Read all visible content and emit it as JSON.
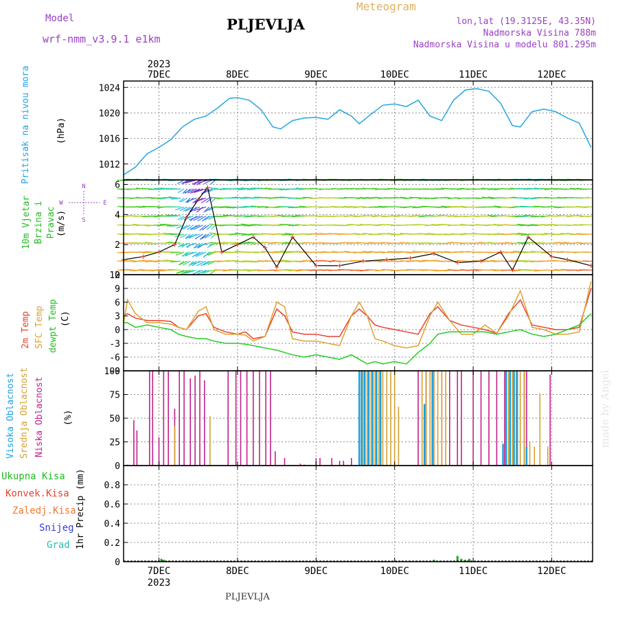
{
  "header": {
    "model_label": "Model",
    "model_name": "wrf-nmm_v3.9.1  e1km",
    "station": "PLJEVLJA",
    "product": "Meteogram",
    "coords": "lon,lat (19.3125E, 43.35N)",
    "elevation": "Nadmorska Visina 788m",
    "model_elevation": "Nadmorska Visina u modelu 801.295m"
  },
  "footer": {
    "station": "PLJEVLJA",
    "credit": "made by Angel"
  },
  "time_axis": {
    "year": "2023",
    "days": [
      "7DEC",
      "8DEC",
      "9DEC",
      "10DEC",
      "11DEC",
      "12DEC"
    ]
  },
  "colors": {
    "pressure": "#22a6e0",
    "t2m": "#e8402e",
    "sfc": "#e0a030",
    "dewpt": "#22cc22",
    "cloud_high": "#1aa0e0",
    "cloud_mid": "#d4a030",
    "cloud_low": "#c0208a",
    "precip": "#22aa22",
    "axis": "#000000",
    "grid": "#888888"
  },
  "chart_data": [
    {
      "type": "line",
      "ylabel": "Pritisak na nivou mora",
      "unit": "(hPa)",
      "ylim": [
        1009.5,
        1025
      ],
      "yticks": [
        1012,
        1016,
        1020,
        1024
      ],
      "x_days": [
        6.55,
        6.7,
        6.85,
        7.0,
        7.15,
        7.3,
        7.45,
        7.6,
        7.75,
        7.9,
        8.0,
        8.15,
        8.3,
        8.45,
        8.55,
        8.7,
        8.85,
        9.0,
        9.15,
        9.3,
        9.45,
        9.55,
        9.7,
        9.85,
        10.0,
        10.15,
        10.3,
        10.45,
        10.6,
        10.75,
        10.9,
        11.05,
        11.2,
        11.35,
        11.5,
        11.6,
        11.75,
        11.9,
        12.05,
        12.2,
        12.35,
        12.5
      ],
      "series": [
        {
          "values": [
            1010.3,
            1011.5,
            1013.6,
            1014.6,
            1015.8,
            1017.8,
            1019.0,
            1019.5,
            1020.8,
            1022.3,
            1022.4,
            1022.0,
            1020.5,
            1017.8,
            1017.5,
            1018.8,
            1019.2,
            1019.3,
            1019.0,
            1020.5,
            1019.5,
            1018.3,
            1019.8,
            1021.2,
            1021.4,
            1021.0,
            1022.0,
            1019.5,
            1018.8,
            1022.0,
            1023.6,
            1023.8,
            1023.4,
            1021.5,
            1018.0,
            1017.8,
            1020.2,
            1020.6,
            1020.2,
            1019.2,
            1018.4,
            1014.6
          ]
        }
      ]
    },
    {
      "type": "scatter",
      "ylabel": "10m Vjetar Brzina i Pravac",
      "unit": "(m/s)",
      "compass": {
        "north": "N",
        "south": "S",
        "east": "E",
        "west": "W"
      },
      "ylim": [
        0,
        6.3
      ],
      "yticks": [
        0,
        2,
        4,
        6
      ],
      "x_days": [
        6.55,
        6.8,
        7.0,
        7.2,
        7.35,
        7.5,
        7.62,
        7.8,
        8.0,
        8.2,
        8.35,
        8.5,
        8.7,
        9.0,
        9.3,
        9.6,
        9.9,
        10.2,
        10.5,
        10.8,
        11.1,
        11.35,
        11.5,
        11.7,
        12.0,
        12.2,
        12.5
      ],
      "series": [
        {
          "name": "speed",
          "values": [
            1.0,
            1.2,
            1.5,
            2.0,
            3.8,
            5.0,
            5.8,
            1.5,
            2.0,
            2.5,
            1.8,
            0.5,
            2.5,
            0.6,
            0.6,
            0.9,
            1.0,
            1.1,
            1.4,
            0.8,
            0.9,
            1.5,
            0.3,
            2.5,
            1.2,
            1.0,
            0.6
          ]
        }
      ]
    },
    {
      "type": "line",
      "ylabels": [
        "2m Temp",
        "SFC Temp",
        "dewpt Temp"
      ],
      "unit": "(C)",
      "ylim": [
        -9,
        12
      ],
      "yticks": [
        -9,
        -6,
        -3,
        0,
        3,
        6,
        9,
        12
      ],
      "x_days": [
        6.55,
        6.6,
        6.7,
        6.85,
        7.0,
        7.15,
        7.25,
        7.35,
        7.5,
        7.6,
        7.7,
        7.85,
        8.0,
        8.1,
        8.2,
        8.35,
        8.5,
        8.6,
        8.7,
        8.85,
        9.0,
        9.15,
        9.3,
        9.45,
        9.55,
        9.65,
        9.75,
        9.85,
        10.0,
        10.15,
        10.3,
        10.45,
        10.55,
        10.7,
        10.85,
        11.0,
        11.15,
        11.3,
        11.45,
        11.6,
        11.75,
        11.9,
        12.05,
        12.2,
        12.35,
        12.5
      ],
      "series": [
        {
          "name": "2m",
          "values": [
            3.0,
            3.5,
            2.5,
            2.0,
            2.0,
            1.8,
            0.5,
            0.0,
            3.0,
            3.5,
            0.5,
            -0.5,
            -1.0,
            -0.5,
            -2.0,
            -1.5,
            4.5,
            3.0,
            -0.5,
            -1.0,
            -1.0,
            -1.5,
            -1.5,
            3.0,
            4.5,
            3.0,
            1.0,
            0.5,
            0.0,
            -0.5,
            -1.0,
            3.5,
            5.0,
            2.0,
            1.0,
            0.5,
            0.0,
            -0.8,
            3.5,
            6.5,
            1.0,
            0.5,
            0.0,
            0.0,
            0.5,
            9.0
          ]
        },
        {
          "name": "SFC",
          "values": [
            1.5,
            6.5,
            3.5,
            1.5,
            1.5,
            1.2,
            0.5,
            0.0,
            4.0,
            5.0,
            0.0,
            -1.0,
            -1.0,
            -1.2,
            -2.5,
            -1.5,
            6.0,
            5.0,
            -2.0,
            -2.5,
            -2.5,
            -3.0,
            -3.5,
            3.0,
            6.0,
            3.0,
            -2.0,
            -2.5,
            -3.5,
            -4.0,
            -3.5,
            3.0,
            6.0,
            2.0,
            -1.0,
            -1.0,
            1.0,
            -0.8,
            3.0,
            8.5,
            0.5,
            0.0,
            -1.0,
            -1.0,
            -0.5,
            10.5
          ]
        },
        {
          "name": "dewpt",
          "values": [
            1.5,
            1.5,
            0.5,
            1.0,
            0.5,
            0.0,
            -1.0,
            -1.5,
            -2.0,
            -2.0,
            -2.5,
            -3.0,
            -3.0,
            -3.2,
            -3.5,
            -4.0,
            -4.5,
            -5.0,
            -5.5,
            -6.0,
            -5.5,
            -6.0,
            -6.5,
            -5.5,
            -6.5,
            -7.5,
            -7.0,
            -7.5,
            -7.0,
            -7.5,
            -5.0,
            -3.0,
            -1.0,
            -0.5,
            -0.5,
            -0.5,
            -0.5,
            -1.0,
            -0.5,
            0.0,
            -1.0,
            -1.5,
            -1.0,
            0.0,
            1.0,
            3.5
          ]
        }
      ]
    },
    {
      "type": "bar",
      "ylabels": [
        "Visoka Oblacnost",
        "Srednja Oblacnost",
        "Niska Oblacnost"
      ],
      "unit": "(%)",
      "ylim": [
        0,
        100
      ],
      "yticks": [
        0,
        25,
        50,
        75,
        100
      ],
      "series": [
        {
          "name": "low",
          "x_days": [
            6.6,
            6.68,
            6.72,
            6.88,
            6.92,
            7.0,
            7.06,
            7.12,
            7.2,
            7.26,
            7.32,
            7.4,
            7.46,
            7.52,
            7.58,
            7.88,
            7.98,
            8.04,
            8.12,
            8.2,
            8.28,
            8.36,
            8.42,
            8.48,
            8.6,
            8.8,
            8.85,
            9.0,
            9.05,
            9.2,
            9.3,
            9.35,
            9.45,
            10.3,
            10.4,
            10.5,
            10.6,
            10.7,
            10.8,
            10.85,
            11.0,
            11.1,
            11.2,
            11.3,
            11.4,
            11.42,
            11.5,
            11.55,
            11.6,
            11.65,
            11.68,
            11.98
          ],
          "values": [
            1,
            48,
            37,
            100,
            100,
            30,
            100,
            100,
            60,
            100,
            100,
            92,
            95,
            100,
            90,
            100,
            100,
            100,
            100,
            100,
            100,
            100,
            100,
            15,
            8,
            2,
            1,
            8,
            8,
            8,
            5,
            5,
            8,
            100,
            100,
            100,
            100,
            100,
            100,
            100,
            100,
            100,
            100,
            100,
            100,
            100,
            100,
            100,
            100,
            100,
            100,
            96
          ]
        },
        {
          "name": "mid",
          "x_days": [
            7.2,
            7.65,
            9.6,
            9.65,
            9.7,
            9.75,
            9.8,
            9.85,
            9.9,
            9.95,
            10.0,
            10.05,
            10.35,
            10.4,
            10.45,
            10.5,
            10.55,
            10.6,
            10.65,
            11.45,
            11.5,
            11.55,
            11.6,
            11.65,
            11.72,
            11.78,
            11.85,
            11.95
          ],
          "values": [
            42,
            52,
            100,
            100,
            100,
            100,
            100,
            100,
            100,
            100,
            100,
            62,
            100,
            100,
            100,
            100,
            100,
            100,
            100,
            100,
            100,
            100,
            100,
            100,
            25,
            20,
            76,
            20
          ]
        },
        {
          "name": "high",
          "x_days": [
            9.55,
            9.58,
            9.62,
            9.67,
            9.72,
            9.77,
            9.82,
            10.38,
            10.48,
            11.38,
            11.42,
            11.47,
            11.52,
            11.56,
            11.68
          ],
          "values": [
            100,
            100,
            100,
            100,
            100,
            100,
            100,
            65,
            100,
            23,
            100,
            100,
            100,
            100,
            20
          ]
        }
      ]
    },
    {
      "type": "bar",
      "ylabels": [
        "Ukupna Kisa",
        "Konvek.Kisa",
        "Zaledj.Kisa",
        "Snijeg",
        "Grad"
      ],
      "unit": "1hr Precip (mm)",
      "ylim": [
        0,
        1.0
      ],
      "yticks": [
        0,
        0.2,
        0.4,
        0.6,
        0.8
      ],
      "x_days": [
        7.03,
        7.06,
        7.09,
        10.5,
        10.8,
        10.85,
        10.9,
        10.95
      ],
      "values": [
        0.03,
        0.02,
        0.01,
        0.02,
        0.06,
        0.03,
        0.02,
        0.03
      ]
    }
  ]
}
